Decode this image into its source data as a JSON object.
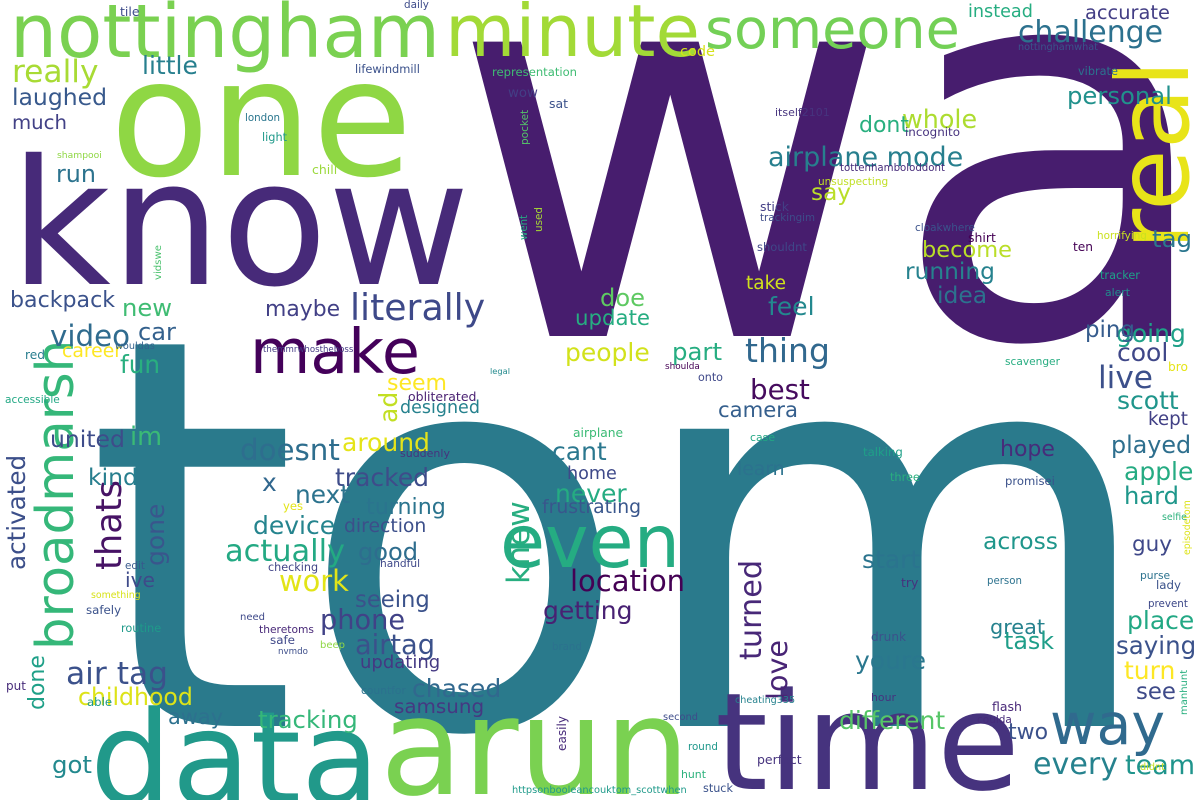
{
  "words": [
    {
      "text": "wa",
      "color": "#471d6e"
    },
    {
      "text": "tom",
      "color": "#2a7a8c"
    },
    {
      "text": "know",
      "color": "#472a79"
    },
    {
      "text": "one",
      "color": "#8fd744"
    },
    {
      "text": "arun",
      "color": "#7ad151"
    },
    {
      "text": "time",
      "color": "#46337e"
    },
    {
      "text": "data",
      "color": "#21998a"
    },
    {
      "text": "real",
      "color": "#e8e419"
    },
    {
      "text": "nottingham",
      "color": "#7ad151"
    },
    {
      "text": "minute",
      "color": "#a2da37"
    },
    {
      "text": "make",
      "color": "#44015a"
    },
    {
      "text": "even",
      "color": "#25ac82"
    },
    {
      "text": "broadmarsh",
      "color": "#35b779"
    },
    {
      "text": "someone",
      "color": "#73d056"
    },
    {
      "text": "way",
      "color": "#306a8e"
    },
    {
      "text": "team",
      "color": "#1f948c"
    },
    {
      "text": "challenge",
      "color": "#2c718e"
    },
    {
      "text": "airplane mode",
      "color": "#277f8e"
    },
    {
      "text": "location",
      "color": "#440154"
    },
    {
      "text": "best",
      "color": "#460b5e"
    },
    {
      "text": "every",
      "color": "#26828e"
    },
    {
      "text": "thing",
      "color": "#31688e"
    },
    {
      "text": "doesnt",
      "color": "#2e6e8e"
    },
    {
      "text": "phone",
      "color": "#414287"
    },
    {
      "text": "airtag",
      "color": "#3b518b"
    },
    {
      "text": "video",
      "color": "#2f6b8e"
    },
    {
      "text": "new",
      "color": "#3fbc73"
    },
    {
      "text": "literally",
      "color": "#3e4989"
    },
    {
      "text": "accurate",
      "color": "#433e85"
    },
    {
      "text": "really",
      "color": "#a8db34"
    },
    {
      "text": "instead",
      "color": "#26ad81"
    },
    {
      "text": "little",
      "color": "#277f8e"
    },
    {
      "text": "laughed",
      "color": "#38598c"
    },
    {
      "text": "much",
      "color": "#424186"
    },
    {
      "text": "run",
      "color": "#2c738e"
    },
    {
      "text": "backpack",
      "color": "#3b528b"
    },
    {
      "text": "im",
      "color": "#3aba76"
    },
    {
      "text": "car",
      "color": "#34618d"
    },
    {
      "text": "fun",
      "color": "#29af7f"
    },
    {
      "text": "united",
      "color": "#3e4c8a"
    },
    {
      "text": "thats",
      "color": "#471365"
    },
    {
      "text": "kind",
      "color": "#277e8e"
    },
    {
      "text": "activated",
      "color": "#3c4f8a"
    },
    {
      "text": "gone",
      "color": "#39568c"
    },
    {
      "text": "ive",
      "color": "#3e4a89"
    },
    {
      "text": "done",
      "color": "#1fa088"
    },
    {
      "text": "air tag",
      "color": "#3b518b"
    },
    {
      "text": "childhood",
      "color": "#dde318"
    },
    {
      "text": "got",
      "color": "#23898e"
    },
    {
      "text": "away",
      "color": "#2d718e"
    },
    {
      "text": "maybe",
      "color": "#424086"
    },
    {
      "text": "ad",
      "color": "#c2df23"
    },
    {
      "text": "seem",
      "color": "#fde725"
    },
    {
      "text": "around",
      "color": "#e5e419"
    },
    {
      "text": "tracked",
      "color": "#3e4c8a"
    },
    {
      "text": "x",
      "color": "#31678e"
    },
    {
      "text": "next",
      "color": "#2c738e"
    },
    {
      "text": "device",
      "color": "#25848e"
    },
    {
      "text": "actually",
      "color": "#23a983"
    },
    {
      "text": "work",
      "color": "#e2e418"
    },
    {
      "text": "good",
      "color": "#2e6d8e"
    },
    {
      "text": "seeing",
      "color": "#3b528b"
    },
    {
      "text": "turning",
      "color": "#2b748e"
    },
    {
      "text": "direction",
      "color": "#3c4f8a"
    },
    {
      "text": "updating",
      "color": "#443983"
    },
    {
      "text": "chased",
      "color": "#31688e"
    },
    {
      "text": "samsung",
      "color": "#453882"
    },
    {
      "text": "tracking",
      "color": "#35b779"
    },
    {
      "text": "knew",
      "color": "#28ae80"
    },
    {
      "text": "cant",
      "color": "#2a778e"
    },
    {
      "text": "home",
      "color": "#3e4989"
    },
    {
      "text": "never",
      "color": "#25ac82"
    },
    {
      "text": "frustrating",
      "color": "#39568c"
    },
    {
      "text": "getting",
      "color": "#482173"
    },
    {
      "text": "turned",
      "color": "#482878"
    },
    {
      "text": "love",
      "color": "#482475"
    },
    {
      "text": "youre",
      "color": "#2a778e"
    },
    {
      "text": "different",
      "color": "#56c667"
    },
    {
      "text": "two",
      "color": "#3b518b"
    },
    {
      "text": "great",
      "color": "#26828e"
    },
    {
      "text": "task",
      "color": "#1f9e89"
    },
    {
      "text": "start",
      "color": "#2b748e"
    },
    {
      "text": "across",
      "color": "#1f968b"
    },
    {
      "text": "people",
      "color": "#d2e21b"
    },
    {
      "text": "update",
      "color": "#26ad81"
    },
    {
      "text": "doe",
      "color": "#5ec962"
    },
    {
      "text": "camera",
      "color": "#355f8d"
    },
    {
      "text": "part",
      "color": "#26ad81"
    },
    {
      "text": "wow",
      "color": "#433e85"
    },
    {
      "text": "whole",
      "color": "#addc30"
    },
    {
      "text": "dont",
      "color": "#29af7f"
    },
    {
      "text": "say",
      "color": "#bade28"
    },
    {
      "text": "become",
      "color": "#bade28"
    },
    {
      "text": "running",
      "color": "#26828e"
    },
    {
      "text": "idea",
      "color": "#2c728e"
    },
    {
      "text": "feel",
      "color": "#23888e"
    },
    {
      "text": "take",
      "color": "#d0e11c"
    },
    {
      "text": "personal",
      "color": "#21918c"
    },
    {
      "text": "tag",
      "color": "#2a768e"
    },
    {
      "text": "going",
      "color": "#1fa188"
    },
    {
      "text": "ping",
      "color": "#365c8d"
    },
    {
      "text": "cool",
      "color": "#3f4788"
    },
    {
      "text": "live",
      "color": "#3c508b"
    },
    {
      "text": "scott",
      "color": "#1f958b"
    },
    {
      "text": "kept",
      "color": "#424186"
    },
    {
      "text": "played",
      "color": "#2e6f8e"
    },
    {
      "text": "apple",
      "color": "#25ab82"
    },
    {
      "text": "hard",
      "color": "#1f978b"
    },
    {
      "text": "guy",
      "color": "#3f4889"
    },
    {
      "text": "hope",
      "color": "#472c7a"
    },
    {
      "text": "place",
      "color": "#22a884"
    },
    {
      "text": "saying",
      "color": "#3b528b"
    },
    {
      "text": "turn",
      "color": "#fde725"
    },
    {
      "text": "see",
      "color": "#3e4a89"
    },
    {
      "text": "code",
      "color": "#d5e21a"
    },
    {
      "text": "designed",
      "color": "#26828e"
    },
    {
      "text": "learn",
      "color": "#2c728e"
    },
    {
      "text": "career",
      "color": "#fde725"
    },
    {
      "text": "wouldas",
      "color": "#33628d"
    },
    {
      "text": "red",
      "color": "#287d8e"
    },
    {
      "text": "accessible",
      "color": "#22a884"
    },
    {
      "text": "legal",
      "color": "#238a8d"
    },
    {
      "text": "suddenly",
      "color": "#46337e"
    },
    {
      "text": "obliterated",
      "color": "#481f71"
    },
    {
      "text": "airplane",
      "color": "#3bbb75"
    },
    {
      "text": "case",
      "color": "#22a884"
    },
    {
      "text": "talking",
      "color": "#1fa088"
    },
    {
      "text": "three",
      "color": "#29af7f"
    },
    {
      "text": "promisei",
      "color": "#3b528b"
    },
    {
      "text": "horrifying",
      "color": "#cae11f"
    },
    {
      "text": "tracker",
      "color": "#1fa088"
    },
    {
      "text": "alert",
      "color": "#228c8d"
    },
    {
      "text": "ten",
      "color": "#440154"
    },
    {
      "text": "bro",
      "color": "#e5e419"
    },
    {
      "text": "scavenger",
      "color": "#27ad81"
    },
    {
      "text": "shirt",
      "color": "#440154"
    },
    {
      "text": "cloakwhere",
      "color": "#3b528b"
    },
    {
      "text": "shouldnt",
      "color": "#3f4788"
    },
    {
      "text": "stick",
      "color": "#433e85"
    },
    {
      "text": "trackingim",
      "color": "#3e4c8a"
    },
    {
      "text": "unsuspecting",
      "color": "#c0df25"
    },
    {
      "text": "tottenhamboloddont",
      "color": "#472c7a"
    },
    {
      "text": "incognito",
      "color": "#46327e"
    },
    {
      "text": "itself2101",
      "color": "#46337e"
    },
    {
      "text": "vibrate",
      "color": "#2c718e"
    },
    {
      "text": "nottinghamwhat",
      "color": "#3a538b"
    },
    {
      "text": "daily",
      "color": "#3e4c8a"
    },
    {
      "text": "tile",
      "color": "#3e4c8a"
    },
    {
      "text": "lifewindmill",
      "color": "#3b518b"
    },
    {
      "text": "representation",
      "color": "#3fbc73"
    },
    {
      "text": "london",
      "color": "#2a768e"
    },
    {
      "text": "light",
      "color": "#1f998a"
    },
    {
      "text": "shampooi",
      "color": "#8fd744"
    },
    {
      "text": "chill",
      "color": "#9bd93c"
    },
    {
      "text": "sat",
      "color": "#3b518b"
    },
    {
      "text": "pocket",
      "color": "#54c568"
    },
    {
      "text": "vidswe",
      "color": "#4ac16d"
    },
    {
      "text": "went",
      "color": "#25ab82"
    },
    {
      "text": "used",
      "color": "#a8db34"
    },
    {
      "text": "themmrwhostheboss",
      "color": "#443983"
    },
    {
      "text": "episodetom",
      "color": "#dde318"
    },
    {
      "text": "selfie",
      "color": "#2db27d"
    },
    {
      "text": "purse",
      "color": "#2c728e"
    },
    {
      "text": "lady",
      "color": "#3b528b"
    },
    {
      "text": "prevent",
      "color": "#3e4989"
    },
    {
      "text": "manhunt",
      "color": "#29af7f"
    },
    {
      "text": "didnt",
      "color": "#c5e021"
    },
    {
      "text": "yes",
      "color": "#e2e418"
    },
    {
      "text": "edit",
      "color": "#38598c"
    },
    {
      "text": "checking",
      "color": "#414487"
    },
    {
      "text": "handful",
      "color": "#3f4889"
    },
    {
      "text": "something",
      "color": "#d8e219"
    },
    {
      "text": "safely",
      "color": "#3b528b"
    },
    {
      "text": "routine",
      "color": "#1f9a8a"
    },
    {
      "text": "need",
      "color": "#3e4989"
    },
    {
      "text": "theretoms",
      "color": "#482878"
    },
    {
      "text": "safe",
      "color": "#3f4889"
    },
    {
      "text": "nvmdo",
      "color": "#3d4e8a"
    },
    {
      "text": "beep",
      "color": "#8fd744"
    },
    {
      "text": "brand",
      "color": "#2c728e"
    },
    {
      "text": "put",
      "color": "#472c7a"
    },
    {
      "text": "able",
      "color": "#1f9a8a"
    },
    {
      "text": "countfor",
      "color": "#2c718e"
    },
    {
      "text": "cheating335",
      "color": "#26828e"
    },
    {
      "text": "second",
      "color": "#3e4c8a"
    },
    {
      "text": "easily",
      "color": "#472a7a"
    },
    {
      "text": "round",
      "color": "#1f988b"
    },
    {
      "text": "perfect",
      "color": "#46337e"
    },
    {
      "text": "hunt",
      "color": "#2db27d"
    },
    {
      "text": "stuck",
      "color": "#3b528b"
    },
    {
      "text": "httpsonbooleancouktom_scottwhen",
      "color": "#1f9a8a"
    },
    {
      "text": "try",
      "color": "#46327e"
    },
    {
      "text": "person",
      "color": "#2c728e"
    },
    {
      "text": "drunk",
      "color": "#3b528b"
    },
    {
      "text": "hour",
      "color": "#46337e"
    },
    {
      "text": "flash",
      "color": "#482878"
    },
    {
      "text": "coulda",
      "color": "#472c7a"
    },
    {
      "text": "shoulda",
      "color": "#440154"
    },
    {
      "text": "onto",
      "color": "#3f4889"
    }
  ]
}
